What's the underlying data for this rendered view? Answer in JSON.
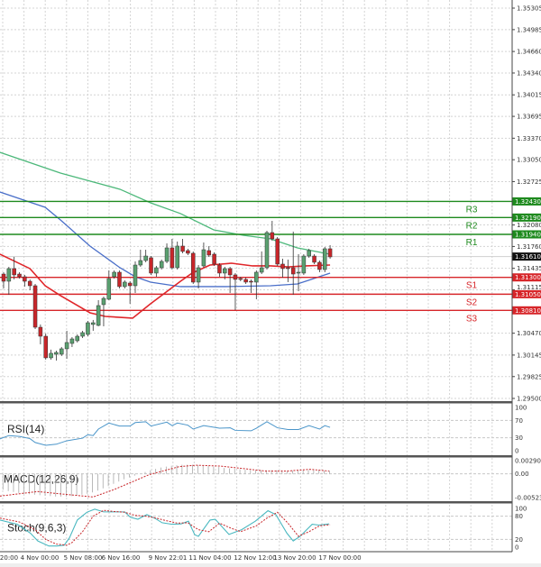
{
  "chart_data": [
    {
      "type": "candlestick",
      "ylim": [
        1.2945,
        1.3543
      ],
      "y_ticks": [
        "1.35305",
        "1.34985",
        "1.34660",
        "1.34340",
        "1.34015",
        "1.33695",
        "1.33370",
        "1.33050",
        "1.32725",
        "1.32080",
        "1.31760",
        "1.31435",
        "1.31115",
        "1.30470",
        "1.30145",
        "1.29825",
        "1.29500"
      ],
      "current_price": "1.31610",
      "grid": true,
      "ohlc": [
        [
          1.3135,
          1.31377,
          1.31136,
          1.31243
        ],
        [
          1.31243,
          1.31457,
          1.31042,
          1.31431
        ],
        [
          1.31431,
          1.31605,
          1.3127,
          1.31337
        ],
        [
          1.3135,
          1.31377,
          1.31283,
          1.3131
        ],
        [
          1.3131,
          1.31337,
          1.31163,
          1.31243
        ],
        [
          1.31243,
          1.3127,
          1.31109,
          1.31176
        ],
        [
          1.31176,
          1.31203,
          1.30532,
          1.30559
        ],
        [
          1.30559,
          1.306,
          1.30305,
          1.30425
        ],
        [
          1.30425,
          1.30466,
          1.30077,
          1.30104
        ],
        [
          1.30104,
          1.30225,
          1.30077,
          1.30171
        ],
        [
          1.30157,
          1.30211,
          1.30063,
          1.30184
        ],
        [
          1.30157,
          1.30265,
          1.30131,
          1.30238
        ],
        [
          1.30238,
          1.30506,
          1.3009,
          1.30332
        ],
        [
          1.30318,
          1.30412,
          1.30265,
          1.30385
        ],
        [
          1.30358,
          1.30452,
          1.30332,
          1.30425
        ],
        [
          1.30425,
          1.30506,
          1.30399,
          1.30479
        ],
        [
          1.30452,
          1.30653,
          1.30425,
          1.30626
        ],
        [
          1.306,
          1.30667,
          1.30506,
          1.30626
        ],
        [
          1.30586,
          1.30962,
          1.30573,
          1.30881
        ],
        [
          1.30895,
          1.31015,
          1.30573,
          1.30988
        ],
        [
          1.30975,
          1.31404,
          1.30962,
          1.31283
        ],
        [
          1.3131,
          1.31404,
          1.31283,
          1.31377
        ],
        [
          1.31377,
          1.31404,
          1.31136,
          1.31163
        ],
        [
          1.31163,
          1.31256,
          1.31136,
          1.3123
        ],
        [
          1.31216,
          1.31243,
          1.30908,
          1.31176
        ],
        [
          1.31176,
          1.31538,
          1.31069,
          1.31484
        ],
        [
          1.31484,
          1.31712,
          1.31457,
          1.31551
        ],
        [
          1.31551,
          1.31712,
          1.31525,
          1.31618
        ],
        [
          1.31592,
          1.31618,
          1.31337,
          1.31364
        ],
        [
          1.31364,
          1.31471,
          1.3131,
          1.31444
        ],
        [
          1.31444,
          1.31565,
          1.31417,
          1.31538
        ],
        [
          1.31538,
          1.31806,
          1.31511,
          1.31739
        ],
        [
          1.31739,
          1.31873,
          1.31417,
          1.31444
        ],
        [
          1.31444,
          1.31833,
          1.31417,
          1.31766
        ],
        [
          1.31766,
          1.31873,
          1.31659,
          1.31686
        ],
        [
          1.31699,
          1.31726,
          1.31632,
          1.31659
        ],
        [
          1.31659,
          1.31686,
          1.31203,
          1.3123
        ],
        [
          1.3123,
          1.31484,
          1.31136,
          1.31444
        ],
        [
          1.31471,
          1.3182,
          1.31444,
          1.31712
        ],
        [
          1.31699,
          1.31766,
          1.31605,
          1.31632
        ],
        [
          1.31645,
          1.31672,
          1.31471,
          1.31498
        ],
        [
          1.31484,
          1.31511,
          1.3131,
          1.31364
        ],
        [
          1.31364,
          1.31457,
          1.3127,
          1.31431
        ],
        [
          1.31431,
          1.31457,
          1.31069,
          1.31337
        ],
        [
          1.31337,
          1.31364,
          1.30814,
          1.3127
        ],
        [
          1.31283,
          1.3131,
          1.31243,
          1.3127
        ],
        [
          1.3127,
          1.31297,
          1.31203,
          1.3123
        ],
        [
          1.31243,
          1.3127,
          1.31069,
          1.3123
        ],
        [
          1.3123,
          1.31404,
          1.30975,
          1.31377
        ],
        [
          1.31377,
          1.31686,
          1.3135,
          1.31444
        ],
        [
          1.31444,
          1.31994,
          1.31417,
          1.31967
        ],
        [
          1.31967,
          1.32141,
          1.31846,
          1.31873
        ],
        [
          1.31873,
          1.319,
          1.31471,
          1.31498
        ],
        [
          1.31498,
          1.31578,
          1.31297,
          1.31431
        ],
        [
          1.31444,
          1.31565,
          1.3123,
          1.31431
        ],
        [
          1.31444,
          1.31981,
          1.31042,
          1.3135
        ],
        [
          1.31364,
          1.31645,
          1.31096,
          1.31377
        ],
        [
          1.31364,
          1.31645,
          1.31337,
          1.31618
        ],
        [
          1.31618,
          1.31726,
          1.31592,
          1.31699
        ],
        [
          1.31618,
          1.31645,
          1.31498,
          1.31525
        ],
        [
          1.31525,
          1.31551,
          1.31377,
          1.31417
        ],
        [
          1.31417,
          1.31753,
          1.31377,
          1.31726
        ],
        [
          1.31726,
          1.31779,
          1.31578,
          1.31605
        ]
      ],
      "moving_averages": [
        {
          "color": "#4cb87a",
          "points": [
            [
              -0.7,
              1.3316
            ],
            [
              10.8,
              1.32852
            ],
            [
              22.1,
              1.32611
            ],
            [
              27.9,
              1.32409
            ],
            [
              33.6,
              1.32249
            ],
            [
              39.9,
              1.32007
            ],
            [
              45.5,
              1.31927
            ],
            [
              50.7,
              1.31873
            ],
            [
              55.8,
              1.31739
            ],
            [
              62,
              1.31645
            ]
          ]
        },
        {
          "color": "#4a6fc9",
          "points": [
            [
              -0.7,
              1.3257
            ],
            [
              7.9,
              1.32342
            ],
            [
              10.8,
              1.32155
            ],
            [
              16.4,
              1.31766
            ],
            [
              22.1,
              1.31444
            ],
            [
              25,
              1.3131
            ],
            [
              27.9,
              1.3123
            ],
            [
              33.6,
              1.31163
            ],
            [
              42.1,
              1.31163
            ],
            [
              50.7,
              1.31176
            ],
            [
              55.8,
              1.31203
            ],
            [
              58.4,
              1.3127
            ],
            [
              62,
              1.31364
            ]
          ]
        },
        {
          "color": "#e0262a",
          "points": [
            [
              -0.7,
              1.31645
            ],
            [
              5,
              1.31431
            ],
            [
              7.9,
              1.31176
            ],
            [
              10.8,
              1.31029
            ],
            [
              16.4,
              1.30774
            ],
            [
              19.3,
              1.3072
            ],
            [
              24.5,
              1.30694
            ],
            [
              27.9,
              1.30908
            ],
            [
              33.6,
              1.31243
            ],
            [
              35.8,
              1.31364
            ],
            [
              39.2,
              1.31484
            ],
            [
              43.3,
              1.31511
            ],
            [
              47.3,
              1.31471
            ],
            [
              50.7,
              1.31471
            ],
            [
              54.1,
              1.31457
            ],
            [
              57.5,
              1.31471
            ],
            [
              62,
              1.31484
            ]
          ]
        }
      ],
      "levels": [
        {
          "label": "R3",
          "value": "1.32430",
          "type": "resistance"
        },
        {
          "label": "R2",
          "value": "1.32190",
          "type": "resistance"
        },
        {
          "label": "R1",
          "value": "1.31940",
          "type": "resistance"
        },
        {
          "label": "S1",
          "value": "1.31300",
          "type": "support"
        },
        {
          "label": "S2",
          "value": "1.31050",
          "type": "support"
        },
        {
          "label": "S3",
          "value": "1.30810",
          "type": "support"
        }
      ],
      "colors": {
        "bull": "#5aa070",
        "bear": "#c8262a",
        "resistance": "#1e8a1e",
        "support": "#d7262a",
        "current": "#111111"
      },
      "x_tick_labels": [
        "20:00",
        "4 Nov 00:00",
        "5 Nov 08:00",
        "6 Nov 16:00",
        "9 Nov 22:01",
        "11 Nov 04:00",
        "12 Nov 12:00",
        "13 Nov 20:00",
        "17 Nov 00:00"
      ]
    },
    {
      "type": "line",
      "title": "RSI(14)",
      "ylim": [
        0,
        100
      ],
      "y_ticks": [
        "100",
        "70",
        "30",
        "0"
      ],
      "color": "#4a95c9",
      "points": [
        [
          -1,
          26
        ],
        [
          1,
          35
        ],
        [
          3,
          33
        ],
        [
          5,
          28
        ],
        [
          6,
          19
        ],
        [
          8,
          12.5
        ],
        [
          10,
          15
        ],
        [
          12,
          23
        ],
        [
          15,
          29
        ],
        [
          16,
          37
        ],
        [
          17,
          35
        ],
        [
          18,
          50
        ],
        [
          20,
          64
        ],
        [
          22,
          57
        ],
        [
          24,
          57
        ],
        [
          25,
          65
        ],
        [
          27,
          67
        ],
        [
          28,
          57
        ],
        [
          31,
          66
        ],
        [
          32,
          58
        ],
        [
          33,
          64
        ],
        [
          35,
          59
        ],
        [
          36,
          50
        ],
        [
          38,
          58
        ],
        [
          41,
          52
        ],
        [
          43,
          53
        ],
        [
          44,
          47
        ],
        [
          47,
          46
        ],
        [
          48,
          52
        ],
        [
          50,
          67
        ],
        [
          52,
          53
        ],
        [
          54,
          49
        ],
        [
          56,
          49
        ],
        [
          58,
          58
        ],
        [
          60,
          50
        ],
        [
          61,
          58
        ],
        [
          62,
          54
        ]
      ]
    },
    {
      "type": "bar+line",
      "title": "MACD(12,26,9)",
      "ylim": [
        -0.005233,
        0.002909
      ],
      "y_ticks": [
        "0.002909",
        "0.00",
        "-0.005233"
      ],
      "histogram": [
        -0.0035,
        -0.0038,
        -0.004,
        -0.0042,
        -0.0044,
        -0.0045,
        -0.0046,
        -0.0047,
        -0.0048,
        -0.0049,
        -0.005,
        -0.005,
        -0.005,
        -0.0049,
        -0.0048,
        -0.0046,
        -0.0044,
        -0.0041,
        -0.0037,
        -0.0032,
        -0.0027,
        -0.0022,
        -0.0017,
        -0.0012,
        -0.0008,
        -0.0004,
        0,
        0.0004,
        0.0008,
        0.0011,
        0.0014,
        0.0016,
        0.0018,
        0.0019,
        0.002,
        0.002,
        0.002,
        0.0019,
        0.0018,
        0.0017,
        0.0016,
        0.0015,
        0.0013,
        0.0012,
        0.0011,
        0.001,
        0.0009,
        0.0008,
        0.0008,
        0.0008,
        0.0008,
        0.0008,
        0.0008,
        0.0008,
        0.0007,
        0.0007,
        0.0007,
        0.0008,
        0.0008,
        0.0008,
        0.0008,
        0.0007,
        0.0007
      ],
      "signal": [
        [
          -0.7,
          -0.0049
        ],
        [
          6.5,
          -0.0039
        ],
        [
          9.8,
          -0.0043
        ],
        [
          17,
          -0.0051
        ],
        [
          20.9,
          -0.0035
        ],
        [
          27.6,
          -0.0002
        ],
        [
          33.4,
          0.0016
        ],
        [
          36.6,
          0.0019
        ],
        [
          41.3,
          0.0017
        ],
        [
          45.2,
          0.0012
        ],
        [
          49.8,
          0.0006
        ],
        [
          53.8,
          0.0006
        ],
        [
          58.2,
          0.001
        ],
        [
          61.8,
          0.0006
        ]
      ],
      "colors": {
        "histogram": "#a8a8a8",
        "signal": "#c8262a"
      }
    },
    {
      "type": "line",
      "title": "Stoch(9,6,3)",
      "ylim": [
        0,
        100
      ],
      "y_ticks": [
        "100",
        "80",
        "20",
        "0"
      ],
      "main": [
        [
          -0.7,
          70
        ],
        [
          2.6,
          59
        ],
        [
          5.1,
          36
        ],
        [
          6.5,
          16
        ],
        [
          8.6,
          3
        ],
        [
          10.1,
          3
        ],
        [
          11.5,
          5
        ],
        [
          12.5,
          24
        ],
        [
          14,
          70
        ],
        [
          15.8,
          90
        ],
        [
          17.3,
          98
        ],
        [
          19,
          91
        ],
        [
          20.9,
          91
        ],
        [
          23,
          91
        ],
        [
          24.1,
          77
        ],
        [
          25.5,
          72
        ],
        [
          27.2,
          84
        ],
        [
          28.8,
          74
        ],
        [
          30.1,
          63
        ],
        [
          32,
          59
        ],
        [
          33.7,
          60
        ],
        [
          35.1,
          67
        ],
        [
          36.3,
          32
        ],
        [
          37,
          28
        ],
        [
          39.2,
          70
        ],
        [
          40.2,
          72
        ],
        [
          42.8,
          33
        ],
        [
          45.2,
          45
        ],
        [
          47.8,
          67
        ],
        [
          50.2,
          94
        ],
        [
          51.7,
          84
        ],
        [
          53.8,
          36
        ],
        [
          55,
          16
        ],
        [
          56.3,
          28
        ],
        [
          58.6,
          59
        ],
        [
          59.9,
          57
        ],
        [
          61.8,
          60
        ]
      ],
      "signal": [
        [
          -0.7,
          75
        ],
        [
          3,
          65
        ],
        [
          6,
          45
        ],
        [
          8,
          20
        ],
        [
          10,
          8
        ],
        [
          12,
          5
        ],
        [
          13,
          12
        ],
        [
          15,
          40
        ],
        [
          17,
          80
        ],
        [
          19,
          95
        ],
        [
          21,
          92
        ],
        [
          23,
          90
        ],
        [
          25,
          82
        ],
        [
          27,
          80
        ],
        [
          29,
          75
        ],
        [
          31,
          68
        ],
        [
          33,
          62
        ],
        [
          35,
          63
        ],
        [
          37,
          45
        ],
        [
          39,
          40
        ],
        [
          41,
          62
        ],
        [
          43,
          50
        ],
        [
          45,
          40
        ],
        [
          48,
          55
        ],
        [
          50,
          75
        ],
        [
          52,
          90
        ],
        [
          54,
          62
        ],
        [
          56,
          28
        ],
        [
          58,
          40
        ],
        [
          60,
          55
        ],
        [
          62,
          58
        ]
      ],
      "colors": {
        "main": "#4ab8c0",
        "signal": "#c8262a"
      }
    }
  ]
}
